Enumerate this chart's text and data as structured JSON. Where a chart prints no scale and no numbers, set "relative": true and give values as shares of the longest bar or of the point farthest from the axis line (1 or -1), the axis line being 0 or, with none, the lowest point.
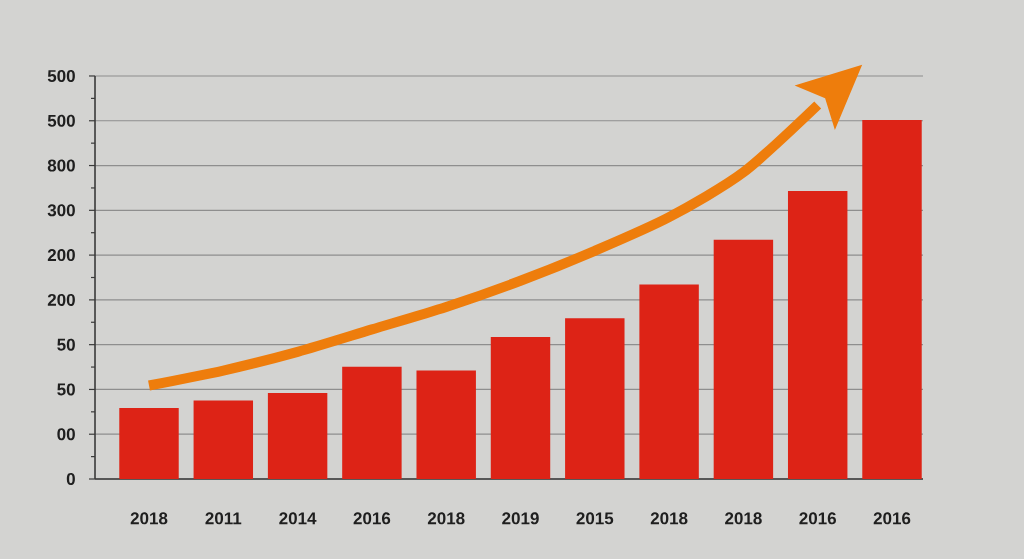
{
  "chart_data": {
    "type": "bar",
    "categories": [
      "2018",
      "2011",
      "2014",
      "2016",
      "2018",
      "2019",
      "2015",
      "2018",
      "2018",
      "2016",
      "2016"
    ],
    "series": [
      {
        "color": "#dd2316",
        "values": [
          0.19,
          0.21,
          0.23,
          0.3,
          0.29,
          0.38,
          0.43,
          0.52,
          0.64,
          0.77,
          0.96
        ]
      },
      {
        "type": "line",
        "color": "#ee7d0c",
        "values": [
          0.25,
          0.29,
          0.34,
          0.4,
          0.46,
          0.53,
          0.61,
          0.7,
          0.82,
          1,
          null
        ]
      }
    ],
    "relative": true,
    "annotations": [
      "500",
      "500",
      "800",
      "300",
      "200",
      "200",
      "50",
      "50",
      "00",
      "0"
    ],
    "grid": "y"
  }
}
